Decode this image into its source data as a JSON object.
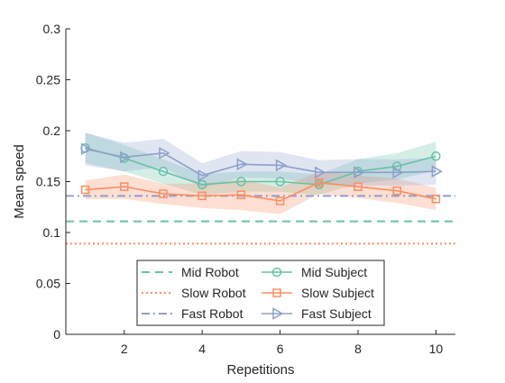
{
  "chart_data": {
    "type": "line",
    "title": "",
    "xlabel": "Repetitions",
    "ylabel": "Mean speed",
    "xlim": [
      0.5,
      10.5
    ],
    "ylim": [
      0,
      0.3
    ],
    "xticks": [
      2,
      4,
      6,
      8,
      10
    ],
    "xtick_labels": [
      "2",
      "4",
      "6",
      "8",
      "10"
    ],
    "yticks": [
      0,
      0.05,
      0.1,
      0.15,
      0.2,
      0.25,
      0.3
    ],
    "ytick_labels": [
      "0",
      "0.05",
      "0.1",
      "0.15",
      "0.2",
      "0.25",
      "0.3"
    ],
    "grid": false,
    "legend_position": "bottom-center",
    "colors": {
      "mid": "#66c2a5",
      "slow": "#fc8d62",
      "fast": "#8da0cb"
    },
    "x": [
      1,
      2,
      3,
      4,
      5,
      6,
      7,
      8,
      9,
      10
    ],
    "reference_lines": [
      {
        "name": "Mid Robot",
        "y": 0.111,
        "style": "dashed",
        "color": "#66c2a5"
      },
      {
        "name": "Slow Robot",
        "y": 0.089,
        "style": "dotted",
        "color": "#fc8d62"
      },
      {
        "name": "Fast Robot",
        "y": 0.136,
        "style": "dashdot",
        "color": "#8da0cb"
      }
    ],
    "series": [
      {
        "name": "Mid Subject",
        "color": "#66c2a5",
        "marker": "circle",
        "values": [
          0.183,
          0.173,
          0.16,
          0.147,
          0.15,
          0.15,
          0.147,
          0.16,
          0.165,
          0.175
        ],
        "lower": [
          0.168,
          0.16,
          0.148,
          0.137,
          0.14,
          0.14,
          0.137,
          0.148,
          0.152,
          0.161
        ],
        "upper": [
          0.198,
          0.186,
          0.172,
          0.157,
          0.16,
          0.16,
          0.157,
          0.172,
          0.178,
          0.189
        ]
      },
      {
        "name": "Slow Subject",
        "color": "#fc8d62",
        "marker": "square",
        "values": [
          0.142,
          0.145,
          0.138,
          0.136,
          0.137,
          0.131,
          0.149,
          0.145,
          0.141,
          0.133
        ],
        "lower": [
          0.133,
          0.133,
          0.128,
          0.124,
          0.122,
          0.118,
          0.138,
          0.134,
          0.129,
          0.122
        ],
        "upper": [
          0.151,
          0.157,
          0.148,
          0.148,
          0.152,
          0.144,
          0.16,
          0.156,
          0.153,
          0.144
        ]
      },
      {
        "name": "Fast Subject",
        "color": "#8da0cb",
        "marker": "triangle-right",
        "values": [
          0.182,
          0.174,
          0.178,
          0.156,
          0.167,
          0.166,
          0.159,
          0.159,
          0.159,
          0.16
        ],
        "lower": [
          0.166,
          0.16,
          0.164,
          0.144,
          0.154,
          0.153,
          0.147,
          0.146,
          0.146,
          0.147
        ],
        "upper": [
          0.198,
          0.188,
          0.192,
          0.168,
          0.18,
          0.179,
          0.171,
          0.172,
          0.172,
          0.173
        ]
      }
    ],
    "legend": {
      "rows": [
        [
          "Mid Robot",
          "Mid Subject"
        ],
        [
          "Slow Robot",
          "Slow Subject"
        ],
        [
          "Fast Robot",
          "Fast Subject"
        ]
      ]
    }
  }
}
